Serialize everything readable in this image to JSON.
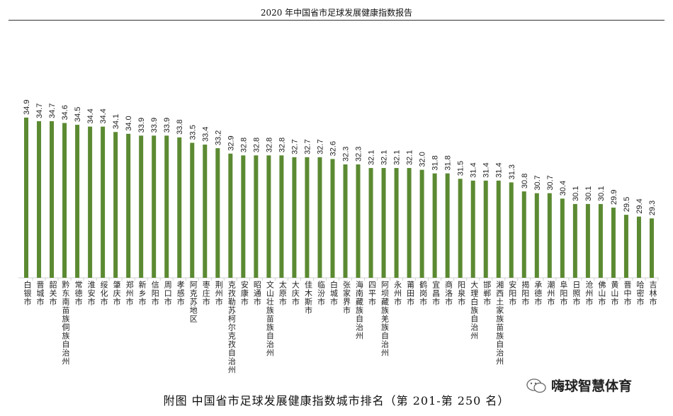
{
  "header": {
    "title": "2020 年中国省市足球发展健康指数报告"
  },
  "caption": "附图  中国省市足球发展健康指数城市排名（第 201-第 250 名）",
  "watermark": {
    "text": "嗨球智慧体育",
    "icon": "wechat-icon"
  },
  "colors": {
    "bar": "#5b8a32",
    "axis": "#d0d0d0"
  },
  "chart_data": {
    "type": "bar",
    "title": "",
    "xlabel": "",
    "ylabel": "",
    "ylim": [
      26,
      35.5
    ],
    "grid": false,
    "categories": [
      "白银市",
      "晋城市",
      "韶关市",
      "黔东南苗族侗族自治州",
      "常德市",
      "淮安市",
      "绥化市",
      "肇庆市",
      "郑州市",
      "新乡市",
      "信阳市",
      "周口市",
      "孝感市",
      "阿克苏地区",
      "枣庄市",
      "荆州市",
      "克孜勒苏柯尔克孜自治州",
      "安康市",
      "昭通市",
      "文山壮族苗族自治州",
      "太原市",
      "大庆市",
      "佳木斯市",
      "临汾市",
      "白城市",
      "张家界市",
      "海南藏族自治州",
      "四平市",
      "阿坝藏族羌族自治州",
      "永州市",
      "莆田市",
      "鹤岗市",
      "宜昌市",
      "商洛市",
      "阳泉市",
      "大理白族自治州",
      "邯郸市",
      "湘西土家族苗族自治州",
      "安阳市",
      "揭阳市",
      "承德市",
      "潮州市",
      "阜阳市",
      "日照市",
      "沧州市",
      "佛山市",
      "黄山市",
      "晋中市",
      "哈密市",
      "吉林市"
    ],
    "values": [
      34.9,
      34.7,
      34.7,
      34.6,
      34.5,
      34.4,
      34.4,
      34.1,
      34.0,
      33.9,
      33.9,
      33.9,
      33.8,
      33.5,
      33.4,
      33.2,
      32.9,
      32.8,
      32.8,
      32.8,
      32.8,
      32.7,
      32.7,
      32.7,
      32.6,
      32.3,
      32.3,
      32.1,
      32.1,
      32.1,
      32.1,
      32.0,
      31.8,
      31.8,
      31.5,
      31.4,
      31.4,
      31.4,
      31.3,
      30.8,
      30.7,
      30.7,
      30.4,
      30.1,
      30.1,
      30.1,
      29.9,
      29.5,
      29.4,
      29.3
    ]
  }
}
